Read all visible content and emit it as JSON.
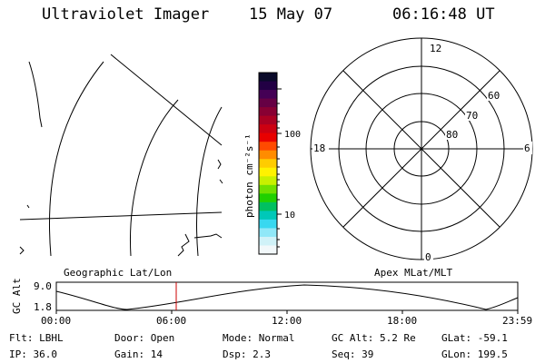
{
  "header": {
    "title": "Ultraviolet Imager",
    "date": "15 May 07",
    "time": "06:16:48 UT"
  },
  "colorbar": {
    "unit_label": "photon cm⁻²s⁻¹",
    "tick_100": "100",
    "tick_10": "10",
    "colors": [
      "#0a0a2a",
      "#220044",
      "#440055",
      "#660044",
      "#880033",
      "#aa0022",
      "#cc0011",
      "#e80000",
      "#ff4a00",
      "#ff8c00",
      "#ffcc00",
      "#fff200",
      "#c8f000",
      "#70e000",
      "#20d000",
      "#00c060",
      "#00c8b8",
      "#38d8f0",
      "#90e8f8",
      "#d0f2f8",
      "#f2f8fa"
    ]
  },
  "polar": {
    "mlt_12": "12",
    "mlt_6": "6",
    "mlt_18": "18",
    "mlt_0": "0",
    "lat_60": "60",
    "lat_70": "70",
    "lat_80": "80"
  },
  "labels": {
    "geo": "Geographic Lat/Lon",
    "apex": "Apex MLat/MLT"
  },
  "altitude_plot": {
    "ylabel": "GC Alt",
    "ymax": "9.0",
    "ymin": "1.8",
    "xticks": [
      "00:00",
      "06:00",
      "12:00",
      "18:00",
      "23:59"
    ]
  },
  "status": {
    "flt": "Flt: LBHL",
    "ip": "IP: 36.0",
    "door": "Door: Open",
    "gain": "Gain: 14",
    "mode": "Mode: Normal",
    "dsp": "Dsp:    2.3",
    "gcalt": "GC Alt: 5.2 Re",
    "seq": "Seq: 39",
    "glat": "GLat: -59.1",
    "glon": "GLon: 199.5"
  }
}
